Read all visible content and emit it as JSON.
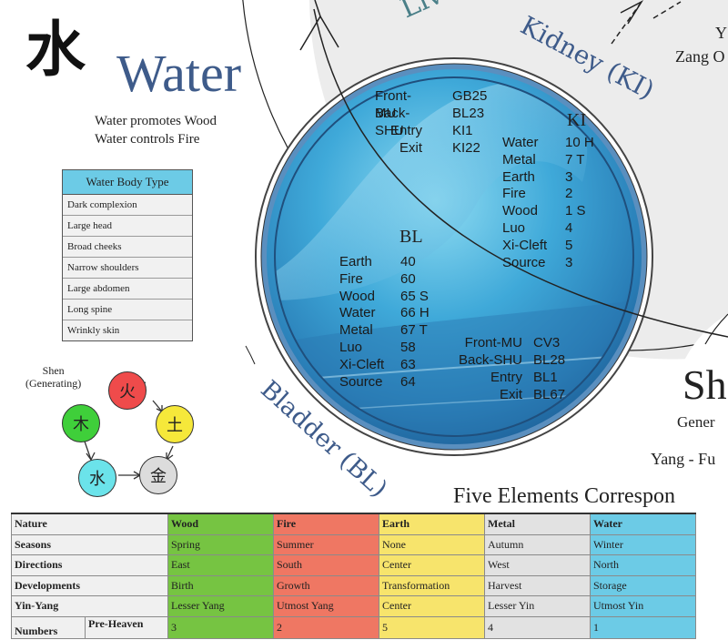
{
  "header": {
    "character": "水",
    "title": "Water",
    "line1": "Water promotes Wood",
    "line2": "Water controls Fire"
  },
  "body_type": {
    "heading": "Water Body Type",
    "items": [
      "Dark complexion",
      "Large head",
      "Broad cheeks",
      "Narrow shoulders",
      "Large abdomen",
      "Long spine",
      "Wrinkly skin"
    ]
  },
  "shen": {
    "label1": "Shen",
    "label2": "(Generating)",
    "elements": [
      {
        "char": "火",
        "color": "#ef4b4b"
      },
      {
        "char": "土",
        "color": "#f6e83a"
      },
      {
        "char": "金",
        "color": "#dcdcdc"
      },
      {
        "char": "水",
        "color": "#6be3ea"
      },
      {
        "char": "木",
        "color": "#3fcf3a"
      }
    ]
  },
  "arcs": {
    "top_partial": "Liv",
    "kidney": "Kidney (KI)",
    "bladder": "Bladder (BL)"
  },
  "ki_points": {
    "heading": "KI",
    "special": [
      {
        "name": "Front-MU",
        "value": "GB25"
      },
      {
        "name": "Back-SHU",
        "value": "BL23"
      },
      {
        "name": "Entry",
        "value": "KI1"
      },
      {
        "name": "Exit",
        "value": "KI22"
      }
    ],
    "elements": [
      {
        "name": "Water",
        "value": "10 H"
      },
      {
        "name": "Metal",
        "value": "7 T"
      },
      {
        "name": "Earth",
        "value": "3"
      },
      {
        "name": "Fire",
        "value": "2"
      },
      {
        "name": "Wood",
        "value": "1 S"
      },
      {
        "name": "Luo",
        "value": "4"
      },
      {
        "name": "Xi-Cleft",
        "value": "5"
      },
      {
        "name": "Source",
        "value": "3"
      }
    ]
  },
  "bl_points": {
    "heading": "BL",
    "elements": [
      {
        "name": "Earth",
        "value": "40"
      },
      {
        "name": "Fire",
        "value": "60"
      },
      {
        "name": "Wood",
        "value": "65 S"
      },
      {
        "name": "Water",
        "value": "66 H"
      },
      {
        "name": "Metal",
        "value": "67 T"
      },
      {
        "name": "Luo",
        "value": "58"
      },
      {
        "name": "Xi-Cleft",
        "value": "63"
      },
      {
        "name": "Source",
        "value": "64"
      }
    ],
    "special": [
      {
        "name": "Front-MU",
        "value": "CV3"
      },
      {
        "name": "Back-SHU",
        "value": "BL28"
      },
      {
        "name": "Entry",
        "value": "BL1"
      },
      {
        "name": "Exit",
        "value": "BL67"
      }
    ]
  },
  "right_side": {
    "top_y": "Y",
    "zang": "Zang O",
    "big_sh": "Sh",
    "gener": "Gener",
    "yang": "Yang - Fu"
  },
  "correspondence": {
    "title": "Five Elements Correspon",
    "header": [
      "Nature",
      "Wood",
      "Fire",
      "Earth",
      "Metal",
      "Water"
    ],
    "rows": [
      [
        "Seasons",
        "Spring",
        "Summer",
        "None",
        "Autumn",
        "Winter"
      ],
      [
        "Directions",
        "East",
        "South",
        "Center",
        "West",
        "North"
      ],
      [
        "Developments",
        "Birth",
        "Growth",
        "Transformation",
        "Harvest",
        "Storage"
      ],
      [
        "Yin-Yang",
        "Lesser Yang",
        "Utmost Yang",
        "Center",
        "Lesser Yin",
        "Utmost Yin"
      ]
    ],
    "numbers_label": "Numbers",
    "numbers_sub": "Pre-Heaven",
    "numbers": [
      "3",
      "2",
      "5",
      "4",
      "1"
    ]
  }
}
